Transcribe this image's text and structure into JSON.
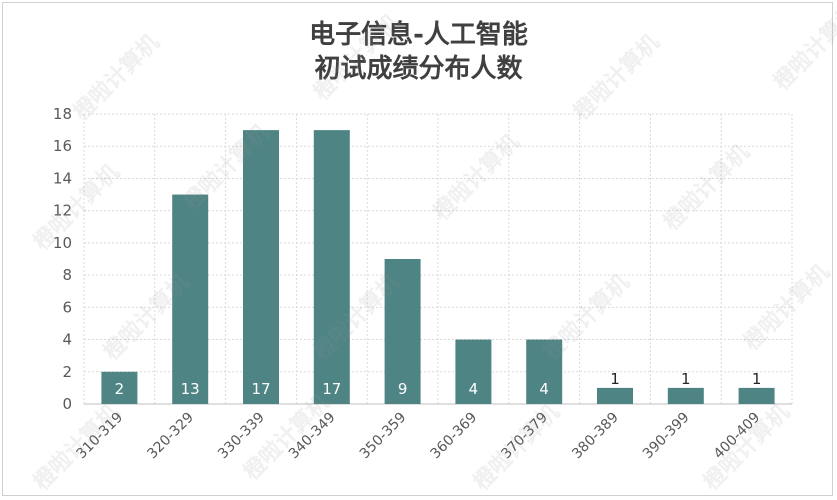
{
  "chart_data": {
    "type": "bar",
    "title_lines": [
      "电子信息-人工智能",
      "初试成绩分布人数"
    ],
    "categories": [
      "310-319",
      "320-329",
      "330-339",
      "340-349",
      "350-359",
      "360-369",
      "370-379",
      "380-389",
      "390-399",
      "400-409"
    ],
    "values": [
      2,
      13,
      17,
      17,
      9,
      4,
      4,
      1,
      1,
      1
    ],
    "ylim": [
      0,
      18
    ],
    "yticks": [
      0,
      2,
      4,
      6,
      8,
      10,
      12,
      14,
      16,
      18
    ],
    "grid": true,
    "legend": "none",
    "bar_color": "#4f8484"
  },
  "watermark": "橙啦计算机"
}
